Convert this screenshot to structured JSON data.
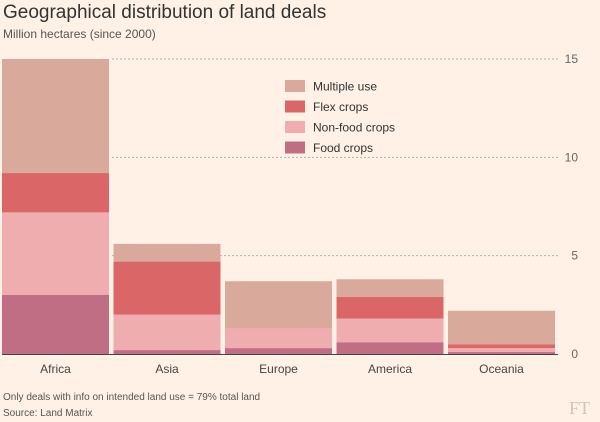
{
  "title": "Geographical distribution of land deals",
  "subtitle": "Million hectares (since 2000)",
  "footnote": "Only deals with info on intended land use = 79% total land",
  "source": "Source: Land Matrix",
  "logo": "FT",
  "colors": {
    "background": "#fff1e5",
    "Multiple use": "#d9aa9b",
    "Flex crops": "#db6667",
    "Non-food crops": "#efadaf",
    "Food crops": "#c06e83",
    "gridline": "#b8b0a8",
    "axis": "#444444"
  },
  "chart_data": {
    "type": "bar",
    "stacked": true,
    "title": "Geographical distribution of land deals",
    "ylabel": "Million hectares (since 2000)",
    "xlabel": "",
    "ylim": [
      0,
      15
    ],
    "yticks": [
      0,
      5,
      10,
      15
    ],
    "grid": true,
    "legend_position": "top-right",
    "categories": [
      "Africa",
      "Asia",
      "Europe",
      "America",
      "Oceania"
    ],
    "series": [
      {
        "name": "Food crops",
        "values": [
          3.0,
          0.2,
          0.3,
          0.6,
          0.1
        ]
      },
      {
        "name": "Non-food crops",
        "values": [
          4.2,
          1.8,
          1.0,
          1.2,
          0.2
        ]
      },
      {
        "name": "Flex crops",
        "values": [
          2.0,
          2.7,
          0.0,
          1.1,
          0.2
        ]
      },
      {
        "name": "Multiple use",
        "values": [
          5.8,
          0.9,
          2.4,
          0.9,
          1.7
        ]
      }
    ],
    "legend_order": [
      "Multiple use",
      "Flex crops",
      "Non-food crops",
      "Food crops"
    ]
  }
}
